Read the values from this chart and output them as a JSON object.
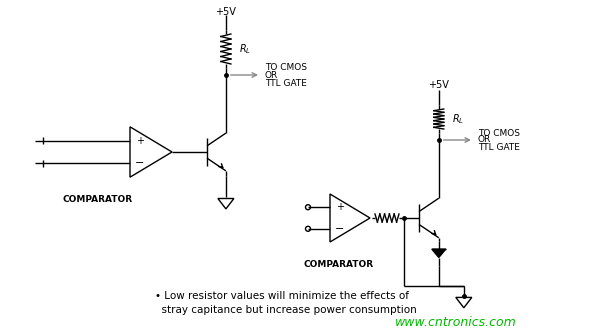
{
  "bg_color": "#ffffff",
  "line_color": "#000000",
  "text_color": "#000000",
  "watermark_color": "#00bb00",
  "watermark_text": "www.cntronics.com",
  "footnote_line1": "• Low resistor values will minimize the effects of",
  "footnote_line2": "  stray capitance but increase power consumption",
  "watermark_fontsize": 9,
  "footnote_fontsize": 7.5
}
